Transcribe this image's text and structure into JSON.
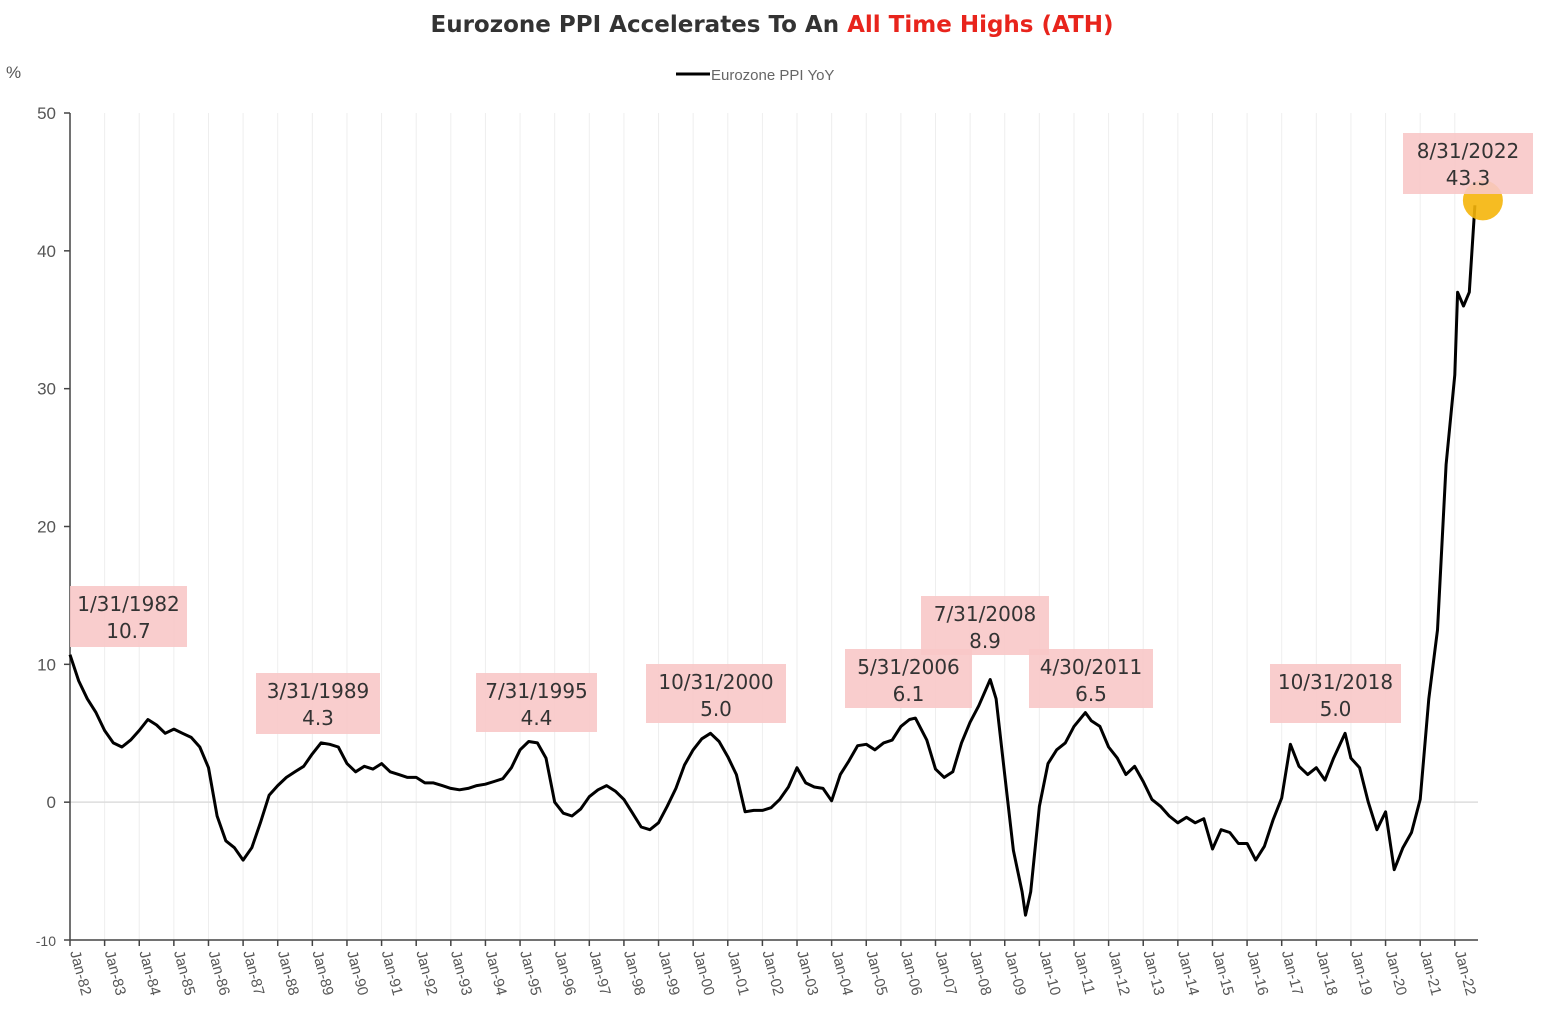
{
  "chart_data": {
    "type": "line",
    "title": "Eurozone PPI Accelerates To An ",
    "title_highlight": "All Time Highs (ATH)",
    "ylabel": "%",
    "ylim": [
      -10,
      50
    ],
    "yticks": [
      -10,
      0,
      10,
      20,
      30,
      40,
      50
    ],
    "grid": true,
    "legend_position": "top-center",
    "x_start": 1982.0,
    "x_end": 2022.67,
    "categories": [
      "Jan-82",
      "Jan-83",
      "Jan-84",
      "Jan-85",
      "Jan-86",
      "Jan-87",
      "Jan-88",
      "Jan-89",
      "Jan-90",
      "Jan-91",
      "Jan-92",
      "Jan-93",
      "Jan-94",
      "Jan-95",
      "Jan-96",
      "Jan-97",
      "Jan-98",
      "Jan-99",
      "Jan-00",
      "Jan-01",
      "Jan-02",
      "Jan-03",
      "Jan-04",
      "Jan-05",
      "Jan-06",
      "Jan-07",
      "Jan-08",
      "Jan-09",
      "Jan-10",
      "Jan-11",
      "Jan-12",
      "Jan-13",
      "Jan-14",
      "Jan-15",
      "Jan-16",
      "Jan-17",
      "Jan-18",
      "Jan-19",
      "Jan-20",
      "Jan-21",
      "Jan-22"
    ],
    "series": [
      {
        "name": "Eurozone PPI YoY",
        "color": "#000000",
        "points": [
          [
            1982.0,
            10.7
          ],
          [
            1982.25,
            8.8
          ],
          [
            1982.5,
            7.5
          ],
          [
            1982.75,
            6.5
          ],
          [
            1983.0,
            5.2
          ],
          [
            1983.25,
            4.3
          ],
          [
            1983.5,
            4.0
          ],
          [
            1983.75,
            4.5
          ],
          [
            1984.0,
            5.2
          ],
          [
            1984.25,
            6.0
          ],
          [
            1984.5,
            5.6
          ],
          [
            1984.75,
            5.0
          ],
          [
            1985.0,
            5.3
          ],
          [
            1985.25,
            5.0
          ],
          [
            1985.5,
            4.7
          ],
          [
            1985.75,
            4.0
          ],
          [
            1986.0,
            2.5
          ],
          [
            1986.25,
            -1.0
          ],
          [
            1986.5,
            -2.8
          ],
          [
            1986.75,
            -3.3
          ],
          [
            1987.0,
            -4.2
          ],
          [
            1987.25,
            -3.3
          ],
          [
            1987.5,
            -1.5
          ],
          [
            1987.75,
            0.5
          ],
          [
            1988.0,
            1.2
          ],
          [
            1988.25,
            1.8
          ],
          [
            1988.5,
            2.2
          ],
          [
            1988.75,
            2.6
          ],
          [
            1989.0,
            3.5
          ],
          [
            1989.25,
            4.3
          ],
          [
            1989.5,
            4.2
          ],
          [
            1989.75,
            4.0
          ],
          [
            1990.0,
            2.8
          ],
          [
            1990.25,
            2.2
          ],
          [
            1990.5,
            2.6
          ],
          [
            1990.75,
            2.4
          ],
          [
            1991.0,
            2.8
          ],
          [
            1991.25,
            2.2
          ],
          [
            1991.5,
            2.0
          ],
          [
            1991.75,
            1.8
          ],
          [
            1992.0,
            1.8
          ],
          [
            1992.25,
            1.4
          ],
          [
            1992.5,
            1.4
          ],
          [
            1992.75,
            1.2
          ],
          [
            1993.0,
            1.0
          ],
          [
            1993.25,
            0.9
          ],
          [
            1993.5,
            1.0
          ],
          [
            1993.75,
            1.2
          ],
          [
            1994.0,
            1.3
          ],
          [
            1994.25,
            1.5
          ],
          [
            1994.5,
            1.7
          ],
          [
            1994.75,
            2.5
          ],
          [
            1995.0,
            3.8
          ],
          [
            1995.25,
            4.4
          ],
          [
            1995.5,
            4.3
          ],
          [
            1995.75,
            3.2
          ],
          [
            1996.0,
            0.0
          ],
          [
            1996.25,
            -0.8
          ],
          [
            1996.5,
            -1.0
          ],
          [
            1996.75,
            -0.5
          ],
          [
            1997.0,
            0.4
          ],
          [
            1997.25,
            0.9
          ],
          [
            1997.5,
            1.2
          ],
          [
            1997.75,
            0.8
          ],
          [
            1998.0,
            0.2
          ],
          [
            1998.25,
            -0.8
          ],
          [
            1998.5,
            -1.8
          ],
          [
            1998.75,
            -2.0
          ],
          [
            1999.0,
            -1.5
          ],
          [
            1999.25,
            -0.3
          ],
          [
            1999.5,
            1.0
          ],
          [
            1999.75,
            2.7
          ],
          [
            2000.0,
            3.8
          ],
          [
            2000.25,
            4.6
          ],
          [
            2000.5,
            5.0
          ],
          [
            2000.75,
            4.4
          ],
          [
            2001.0,
            3.3
          ],
          [
            2001.25,
            2.0
          ],
          [
            2001.5,
            -0.7
          ],
          [
            2001.75,
            -0.6
          ],
          [
            2002.0,
            -0.6
          ],
          [
            2002.25,
            -0.4
          ],
          [
            2002.5,
            0.2
          ],
          [
            2002.75,
            1.1
          ],
          [
            2003.0,
            2.5
          ],
          [
            2003.25,
            1.4
          ],
          [
            2003.5,
            1.1
          ],
          [
            2003.75,
            1.0
          ],
          [
            2004.0,
            0.1
          ],
          [
            2004.25,
            2.0
          ],
          [
            2004.5,
            3.0
          ],
          [
            2004.75,
            4.1
          ],
          [
            2005.0,
            4.2
          ],
          [
            2005.25,
            3.8
          ],
          [
            2005.5,
            4.3
          ],
          [
            2005.75,
            4.5
          ],
          [
            2006.0,
            5.5
          ],
          [
            2006.25,
            6.0
          ],
          [
            2006.42,
            6.1
          ],
          [
            2006.75,
            4.5
          ],
          [
            2007.0,
            2.4
          ],
          [
            2007.25,
            1.8
          ],
          [
            2007.5,
            2.2
          ],
          [
            2007.75,
            4.3
          ],
          [
            2008.0,
            5.8
          ],
          [
            2008.25,
            7.0
          ],
          [
            2008.58,
            8.9
          ],
          [
            2008.75,
            7.5
          ],
          [
            2009.0,
            2.0
          ],
          [
            2009.25,
            -3.5
          ],
          [
            2009.5,
            -6.5
          ],
          [
            2009.6,
            -8.2
          ],
          [
            2009.75,
            -6.5
          ],
          [
            2010.0,
            -0.3
          ],
          [
            2010.25,
            2.8
          ],
          [
            2010.5,
            3.8
          ],
          [
            2010.75,
            4.3
          ],
          [
            2011.0,
            5.5
          ],
          [
            2011.33,
            6.5
          ],
          [
            2011.5,
            5.9
          ],
          [
            2011.75,
            5.5
          ],
          [
            2012.0,
            4.0
          ],
          [
            2012.25,
            3.2
          ],
          [
            2012.5,
            2.0
          ],
          [
            2012.75,
            2.6
          ],
          [
            2013.0,
            1.5
          ],
          [
            2013.25,
            0.2
          ],
          [
            2013.5,
            -0.3
          ],
          [
            2013.75,
            -1.0
          ],
          [
            2014.0,
            -1.5
          ],
          [
            2014.25,
            -1.1
          ],
          [
            2014.5,
            -1.5
          ],
          [
            2014.75,
            -1.2
          ],
          [
            2015.0,
            -3.4
          ],
          [
            2015.25,
            -2.0
          ],
          [
            2015.5,
            -2.2
          ],
          [
            2015.75,
            -3.0
          ],
          [
            2016.0,
            -3.0
          ],
          [
            2016.25,
            -4.2
          ],
          [
            2016.5,
            -3.2
          ],
          [
            2016.75,
            -1.3
          ],
          [
            2017.0,
            0.3
          ],
          [
            2017.25,
            4.2
          ],
          [
            2017.5,
            2.6
          ],
          [
            2017.75,
            2.0
          ],
          [
            2018.0,
            2.5
          ],
          [
            2018.25,
            1.6
          ],
          [
            2018.5,
            3.2
          ],
          [
            2018.83,
            5.0
          ],
          [
            2019.0,
            3.2
          ],
          [
            2019.25,
            2.5
          ],
          [
            2019.5,
            0.0
          ],
          [
            2019.75,
            -2.0
          ],
          [
            2020.0,
            -0.7
          ],
          [
            2020.25,
            -4.9
          ],
          [
            2020.5,
            -3.3
          ],
          [
            2020.75,
            -2.2
          ],
          [
            2021.0,
            0.2
          ],
          [
            2021.25,
            7.5
          ],
          [
            2021.5,
            12.5
          ],
          [
            2021.75,
            24.5
          ],
          [
            2022.0,
            31.0
          ],
          [
            2022.08,
            37.0
          ],
          [
            2022.25,
            36.0
          ],
          [
            2022.42,
            37.0
          ],
          [
            2022.58,
            43.3
          ]
        ]
      }
    ],
    "annotations": [
      {
        "date": "1/31/1982",
        "value": "10.7",
        "x": 1982.0
      },
      {
        "date": "3/31/1989",
        "value": "4.3",
        "x": 1989.25
      },
      {
        "date": "7/31/1995",
        "value": "4.4",
        "x": 1995.58
      },
      {
        "date": "10/31/2000",
        "value": "5.0",
        "x": 2000.83
      },
      {
        "date": "5/31/2006",
        "value": "6.1",
        "x": 2006.42
      },
      {
        "date": "7/31/2008",
        "value": "8.9",
        "x": 2008.58
      },
      {
        "date": "4/30/2011",
        "value": "6.5",
        "x": 2011.33
      },
      {
        "date": "10/31/2018",
        "value": "5.0",
        "x": 2018.83
      },
      {
        "date": "8/31/2022",
        "value": "43.3",
        "x": 2022.67
      }
    ],
    "colors": {
      "line": "#000000",
      "annotation_box": "#f8c8c8",
      "highlight_marker": "#f5b50a",
      "title_accent": "#e8241c",
      "grid": "#eeeeee"
    }
  }
}
